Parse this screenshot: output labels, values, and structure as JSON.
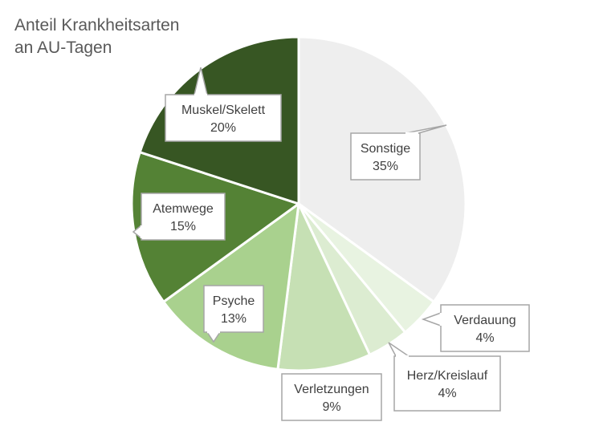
{
  "chart_data": {
    "type": "pie",
    "title_lines": [
      "Anteil Krankheitsarten",
      "an AU-Tagen"
    ],
    "slices": [
      {
        "label": "Sonstige",
        "value": 35,
        "value_label": "35%",
        "color": "#eeeeee"
      },
      {
        "label": "Verdauung",
        "value": 4,
        "value_label": "4%",
        "color": "#e8f3e1"
      },
      {
        "label": "Herz/Kreislauf",
        "value": 4,
        "value_label": "4%",
        "color": "#dcecd1"
      },
      {
        "label": "Verletzungen",
        "value": 9,
        "value_label": "9%",
        "color": "#c6e0b4"
      },
      {
        "label": "Psyche",
        "value": 13,
        "value_label": "13%",
        "color": "#a9d18e"
      },
      {
        "label": "Atemwege",
        "value": 15,
        "value_label": "15%",
        "color": "#548235"
      },
      {
        "label": "Muskel/Skelett",
        "value": 20,
        "value_label": "20%",
        "color": "#375623"
      }
    ],
    "start": "12 o'clock",
    "direction": "clockwise",
    "legend": "none"
  }
}
